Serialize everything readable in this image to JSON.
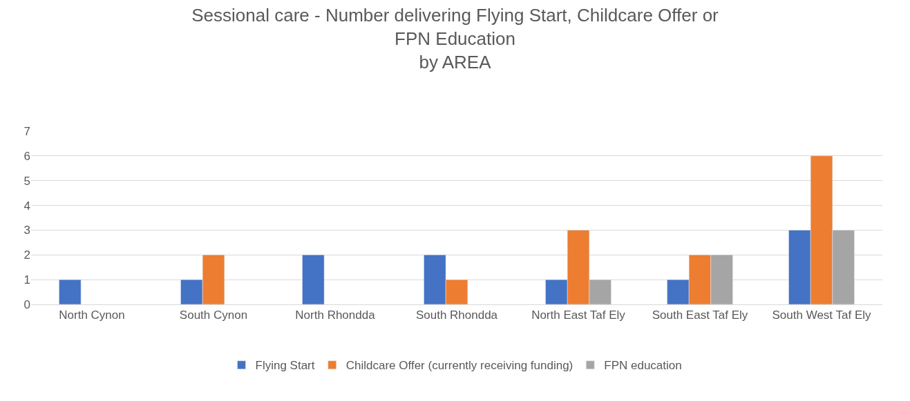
{
  "chart_data": {
    "type": "bar",
    "title": "Sessional care - Number delivering Flying Start, Childcare Offer or FPN Education\nby AREA",
    "categories": [
      "North Cynon",
      "South Cynon",
      "North Rhondda",
      "South Rhondda",
      "North East Taf Ely",
      "South East Taf Ely",
      "South West Taf Ely"
    ],
    "series": [
      {
        "name": "Flying Start",
        "color": "#4472c4",
        "values": [
          1,
          1,
          2,
          2,
          1,
          1,
          3
        ]
      },
      {
        "name": "Childcare Offer (currently receiving funding)",
        "color": "#ed7d31",
        "values": [
          null,
          2,
          null,
          1,
          3,
          2,
          6
        ]
      },
      {
        "name": "FPN education",
        "color": "#a5a5a5",
        "values": [
          null,
          null,
          null,
          null,
          1,
          2,
          3
        ]
      }
    ],
    "ylim": [
      0,
      7
    ],
    "yticks": [
      0,
      1,
      2,
      3,
      4,
      5,
      6,
      7
    ],
    "grid": "y",
    "legend": "bottom"
  }
}
